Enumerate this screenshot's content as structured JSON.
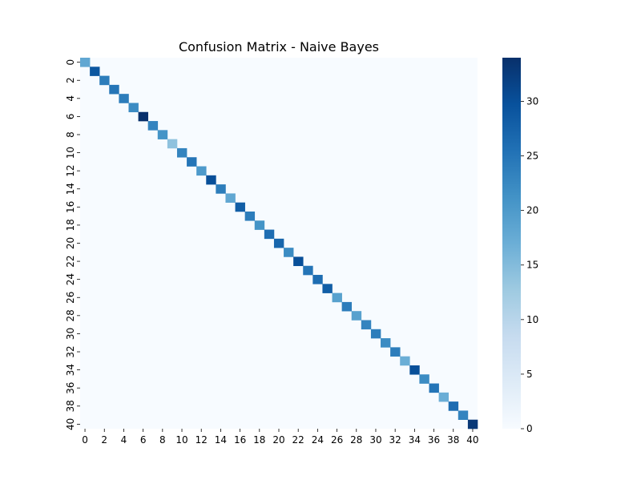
{
  "chart_data": {
    "type": "heatmap",
    "title": "Confusion Matrix - Naive Bayes",
    "xlabel": "",
    "ylabel": "",
    "n_classes": 41,
    "x_tick_labels": [
      "0",
      "2",
      "4",
      "6",
      "8",
      "10",
      "12",
      "14",
      "16",
      "18",
      "20",
      "22",
      "24",
      "26",
      "28",
      "30",
      "32",
      "34",
      "36",
      "38",
      "40"
    ],
    "y_tick_labels": [
      "0",
      "2",
      "4",
      "6",
      "8",
      "10",
      "12",
      "14",
      "16",
      "18",
      "20",
      "22",
      "24",
      "26",
      "28",
      "30",
      "32",
      "34",
      "36",
      "38",
      "40"
    ],
    "tick_values": [
      0,
      2,
      4,
      6,
      8,
      10,
      12,
      14,
      16,
      18,
      20,
      22,
      24,
      26,
      28,
      30,
      32,
      34,
      36,
      38,
      40
    ],
    "off_diagonal_value": 0,
    "diagonal_values": [
      18,
      29,
      24,
      25,
      24,
      22,
      34,
      23,
      21,
      14,
      23,
      25,
      20,
      30,
      24,
      18,
      28,
      24,
      21,
      26,
      27,
      22,
      30,
      25,
      26,
      28,
      19,
      24,
      19,
      23,
      24,
      22,
      24,
      17,
      30,
      22,
      25,
      17,
      26,
      23,
      33
    ],
    "colorbar": {
      "min": 0,
      "max": 34,
      "ticks": [
        0,
        5,
        10,
        15,
        20,
        25,
        30
      ],
      "tick_labels": [
        "0",
        "5",
        "10",
        "15",
        "20",
        "25",
        "30"
      ]
    },
    "colormap": "Blues",
    "colormap_stops": [
      "#f7fbff",
      "#deebf7",
      "#c6dbef",
      "#9ecae1",
      "#6baed6",
      "#4292c6",
      "#2171b5",
      "#08519c",
      "#08306b"
    ],
    "grid": false,
    "legend": "colorbar-right"
  }
}
